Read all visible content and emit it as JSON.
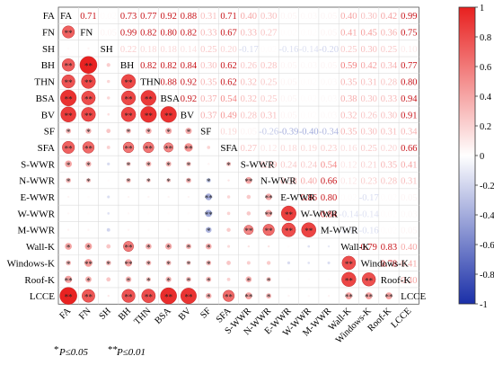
{
  "chart_data": {
    "type": "heatmap",
    "subtype": "correlation-matrix",
    "variables": [
      "FA",
      "FN",
      "SH",
      "BH",
      "THN",
      "BSA",
      "BV",
      "SF",
      "SFA",
      "S-WWR",
      "N-WWR",
      "E-WWR",
      "W-WWR",
      "M-WWR",
      "Wall-K",
      "Windows-K",
      "Roof-K",
      "LCCE"
    ],
    "matrix": [
      [
        1,
        0.71,
        0.02,
        0.73,
        0.77,
        0.92,
        0.88,
        0.31,
        0.71,
        0.4,
        0.3,
        0.05,
        0.03,
        0.05,
        0.4,
        0.3,
        0.42,
        0.99
      ],
      [
        0.71,
        1,
        0.05,
        0.99,
        0.82,
        0.8,
        0.82,
        0.33,
        0.67,
        0.33,
        0.27,
        0.02,
        0.02,
        0.05,
        0.41,
        0.45,
        0.36,
        0.75
      ],
      [
        0.02,
        0.05,
        1,
        0.22,
        0.18,
        0.18,
        0.14,
        0.25,
        0.2,
        -0.17,
        0.02,
        -0.16,
        -0.14,
        -0.2,
        0.25,
        0.3,
        0.25,
        0.1
      ],
      [
        0.73,
        0.99,
        0.22,
        1,
        0.82,
        0.82,
        0.84,
        0.3,
        0.62,
        0.26,
        0.28,
        0.05,
        0.03,
        0.05,
        0.59,
        0.42,
        0.34,
        0.77
      ],
      [
        0.77,
        0.82,
        0.18,
        0.82,
        1,
        0.88,
        0.92,
        0.35,
        0.62,
        0.32,
        0.25,
        0.05,
        0.02,
        0.03,
        0.35,
        0.31,
        0.28,
        0.8
      ],
      [
        0.92,
        0.8,
        0.18,
        0.82,
        0.88,
        1,
        0.92,
        0.37,
        0.54,
        0.32,
        0.25,
        0.05,
        0.02,
        0.03,
        0.38,
        0.3,
        0.33,
        0.94
      ],
      [
        0.88,
        0.82,
        0.14,
        0.84,
        0.92,
        0.92,
        1,
        0.37,
        0.49,
        0.28,
        0.31,
        0.05,
        0.02,
        0.03,
        0.32,
        0.26,
        0.3,
        0.91
      ],
      [
        0.31,
        0.33,
        0.25,
        0.3,
        0.35,
        0.37,
        0.37,
        1,
        0.19,
        0.05,
        -0.26,
        -0.39,
        -0.4,
        -0.34,
        0.35,
        0.3,
        0.31,
        0.34
      ],
      [
        0.71,
        0.67,
        0.2,
        0.62,
        0.62,
        0.54,
        0.49,
        0.19,
        1,
        0.27,
        0.12,
        0.18,
        0.19,
        0.23,
        0.16,
        0.25,
        0.2,
        0.66
      ],
      [
        0.4,
        0.33,
        -0.17,
        0.26,
        0.32,
        0.32,
        0.28,
        0.05,
        0.27,
        1,
        0.39,
        0.24,
        0.24,
        0.54,
        0.12,
        0.21,
        0.35,
        0.41
      ],
      [
        0.3,
        0.27,
        0.02,
        0.28,
        0.25,
        0.25,
        0.31,
        -0.26,
        0.12,
        0.39,
        1,
        0.38,
        0.4,
        0.66,
        0.12,
        0.23,
        0.28,
        0.31
      ],
      [
        0.05,
        0.02,
        -0.16,
        0.05,
        0.05,
        0.05,
        0.05,
        -0.39,
        0.18,
        0.24,
        0.38,
        1,
        0.86,
        0.8,
        0.02,
        -0.17,
        0.02,
        0.05
      ],
      [
        0.03,
        0.02,
        -0.14,
        0.03,
        0.02,
        0.02,
        0.02,
        -0.4,
        0.19,
        0.24,
        0.4,
        0.86,
        1,
        0.84,
        -0.14,
        -0.14,
        0.02,
        0.03
      ],
      [
        0.05,
        0.05,
        -0.2,
        0.05,
        0.03,
        0.03,
        0.03,
        -0.34,
        0.23,
        0.54,
        0.66,
        0.8,
        0.84,
        1,
        -0.1,
        -0.16,
        0.02,
        0.05
      ],
      [
        0.4,
        0.41,
        0.25,
        0.59,
        0.35,
        0.38,
        0.32,
        0.35,
        0.16,
        0.12,
        0.12,
        0.02,
        -0.14,
        -0.1,
        1,
        0.79,
        0.83,
        0.4
      ],
      [
        0.3,
        0.45,
        0.3,
        0.42,
        0.31,
        0.3,
        0.26,
        0.3,
        0.25,
        0.21,
        0.23,
        -0.17,
        -0.14,
        -0.16,
        0.79,
        1,
        0.78,
        0.41
      ],
      [
        0.42,
        0.36,
        0.25,
        0.34,
        0.28,
        0.33,
        0.3,
        0.31,
        0.2,
        0.35,
        0.28,
        0.02,
        0.02,
        0.02,
        0.83,
        0.78,
        1,
        0.4
      ],
      [
        0.99,
        0.75,
        0.1,
        0.77,
        0.8,
        0.94,
        0.91,
        0.34,
        0.66,
        0.41,
        0.31,
        0.05,
        0.03,
        0.05,
        0.4,
        0.41,
        0.4,
        1
      ]
    ],
    "significance_lower": [
      [
        0,
        0,
        0,
        0,
        0,
        0,
        0,
        0,
        0,
        0,
        0,
        0,
        0,
        0,
        0,
        0,
        0,
        0
      ],
      [
        2,
        0,
        0,
        0,
        0,
        0,
        0,
        0,
        0,
        0,
        0,
        0,
        0,
        0,
        0,
        0,
        0,
        0
      ],
      [
        0,
        0,
        0,
        0,
        0,
        0,
        0,
        0,
        0,
        0,
        0,
        0,
        0,
        0,
        0,
        0,
        0,
        0
      ],
      [
        2,
        2,
        0,
        0,
        0,
        0,
        0,
        0,
        0,
        0,
        0,
        0,
        0,
        0,
        0,
        0,
        0,
        0
      ],
      [
        2,
        2,
        0,
        2,
        0,
        0,
        0,
        0,
        0,
        0,
        0,
        0,
        0,
        0,
        0,
        0,
        0,
        0
      ],
      [
        2,
        2,
        0,
        2,
        2,
        0,
        0,
        0,
        0,
        0,
        0,
        0,
        0,
        0,
        0,
        0,
        0,
        0
      ],
      [
        2,
        2,
        0,
        2,
        2,
        2,
        0,
        0,
        0,
        0,
        0,
        0,
        0,
        0,
        0,
        0,
        0,
        0
      ],
      [
        1,
        1,
        0,
        1,
        1,
        1,
        1,
        0,
        0,
        0,
        0,
        0,
        0,
        0,
        0,
        0,
        0,
        0
      ],
      [
        2,
        2,
        0,
        2,
        2,
        2,
        2,
        0,
        0,
        0,
        0,
        0,
        0,
        0,
        0,
        0,
        0,
        0
      ],
      [
        1,
        1,
        0,
        1,
        1,
        1,
        1,
        0,
        1,
        0,
        0,
        0,
        0,
        0,
        0,
        0,
        0,
        0
      ],
      [
        1,
        1,
        0,
        1,
        1,
        1,
        1,
        1,
        0,
        2,
        0,
        0,
        0,
        0,
        0,
        0,
        0,
        0
      ],
      [
        0,
        0,
        0,
        0,
        0,
        0,
        0,
        2,
        0,
        0,
        2,
        0,
        0,
        0,
        0,
        0,
        0,
        0
      ],
      [
        0,
        0,
        0,
        0,
        0,
        0,
        0,
        2,
        0,
        0,
        2,
        2,
        0,
        0,
        0,
        0,
        0,
        0
      ],
      [
        0,
        0,
        0,
        0,
        0,
        0,
        0,
        1,
        0,
        2,
        2,
        2,
        2,
        0,
        0,
        0,
        0,
        0
      ],
      [
        1,
        1,
        0,
        2,
        1,
        1,
        1,
        1,
        0,
        0,
        0,
        0,
        0,
        0,
        0,
        0,
        0,
        0
      ],
      [
        1,
        2,
        1,
        2,
        1,
        1,
        1,
        1,
        0,
        0,
        0,
        0,
        0,
        0,
        2,
        0,
        0,
        0
      ],
      [
        2,
        1,
        0,
        1,
        1,
        1,
        1,
        1,
        0,
        1,
        1,
        0,
        0,
        0,
        2,
        2,
        0,
        0
      ],
      [
        2,
        2,
        0,
        2,
        2,
        2,
        2,
        1,
        2,
        2,
        1,
        0,
        0,
        0,
        2,
        2,
        2,
        0
      ]
    ],
    "lower_triangle": "circles",
    "upper_triangle": "values",
    "colorbar": {
      "min": -1,
      "max": 1,
      "ticks": [
        "1",
        "0.8",
        "0.6",
        "0.4",
        "0.2",
        "0",
        "-0.2",
        "-0.4",
        "-0.6",
        "-0.8",
        "-1"
      ]
    },
    "colors": {
      "negative": "#1a2fa8",
      "positive": "#e8201f",
      "neutral": "#ffffff"
    },
    "legend_text": {
      "star1": "*",
      "star1_label": "P≤0.05",
      "star2": "**",
      "star2_label": "P≤0.01"
    }
  }
}
